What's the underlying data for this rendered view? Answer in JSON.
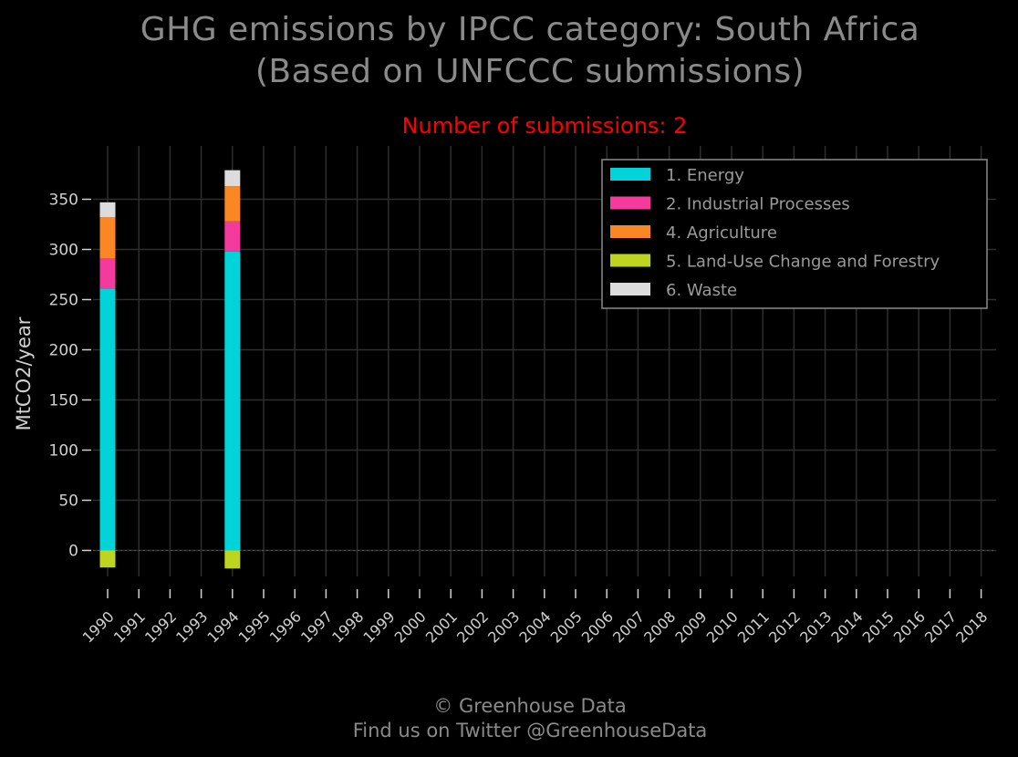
{
  "title_line1": "GHG emissions by IPCC category: South Africa",
  "title_line2": "(Based on UNFCCC submissions)",
  "subtitle": "Number of submissions: 2",
  "footer_line1": "© Greenhouse Data",
  "footer_line2": "Find us on Twitter @GreenhouseData",
  "colors": {
    "background": "#000000",
    "grid": "#2e2e2e",
    "axis_text": "#d0d0d0",
    "title": "#8a8a8a",
    "subtitle": "#ff0000",
    "legend_border": "#8a8a8a",
    "legend_text": "#9a9a9a"
  },
  "chart_data": {
    "type": "bar",
    "stacked": true,
    "ylabel": "MtCO2/year",
    "xlabel": "",
    "ylim": [
      -40,
      395
    ],
    "yticks": [
      0,
      50,
      100,
      150,
      200,
      250,
      300,
      350
    ],
    "grid": true,
    "legend_position": "top-right",
    "categories": [
      "1990",
      "1991",
      "1992",
      "1993",
      "1994",
      "1995",
      "1996",
      "1997",
      "1998",
      "1999",
      "2000",
      "2001",
      "2002",
      "2003",
      "2004",
      "2005",
      "2006",
      "2007",
      "2008",
      "2009",
      "2010",
      "2011",
      "2012",
      "2013",
      "2014",
      "2015",
      "2016",
      "2017",
      "2018"
    ],
    "series": [
      {
        "name": "1. Energy",
        "color": "#00d4d8",
        "values": [
          261,
          null,
          null,
          null,
          298,
          null,
          null,
          null,
          null,
          null,
          null,
          null,
          null,
          null,
          null,
          null,
          null,
          null,
          null,
          null,
          null,
          null,
          null,
          null,
          null,
          null,
          null,
          null,
          null
        ]
      },
      {
        "name": "2. Industrial Processes",
        "color": "#f53a9e",
        "values": [
          30,
          null,
          null,
          null,
          30,
          null,
          null,
          null,
          null,
          null,
          null,
          null,
          null,
          null,
          null,
          null,
          null,
          null,
          null,
          null,
          null,
          null,
          null,
          null,
          null,
          null,
          null,
          null,
          null
        ]
      },
      {
        "name": "4. Agriculture",
        "color": "#fb8724",
        "values": [
          41,
          null,
          null,
          null,
          35,
          null,
          null,
          null,
          null,
          null,
          null,
          null,
          null,
          null,
          null,
          null,
          null,
          null,
          null,
          null,
          null,
          null,
          null,
          null,
          null,
          null,
          null,
          null,
          null
        ]
      },
      {
        "name": "5. Land-Use Change and Forestry",
        "color": "#bed41e",
        "values": [
          -17,
          null,
          null,
          null,
          -18,
          null,
          null,
          null,
          null,
          null,
          null,
          null,
          null,
          null,
          null,
          null,
          null,
          null,
          null,
          null,
          null,
          null,
          null,
          null,
          null,
          null,
          null,
          null,
          null
        ]
      },
      {
        "name": "6. Waste",
        "color": "#dcdcdc",
        "values": [
          15,
          null,
          null,
          null,
          16,
          null,
          null,
          null,
          null,
          null,
          null,
          null,
          null,
          null,
          null,
          null,
          null,
          null,
          null,
          null,
          null,
          null,
          null,
          null,
          null,
          null,
          null,
          null,
          null
        ]
      }
    ]
  }
}
